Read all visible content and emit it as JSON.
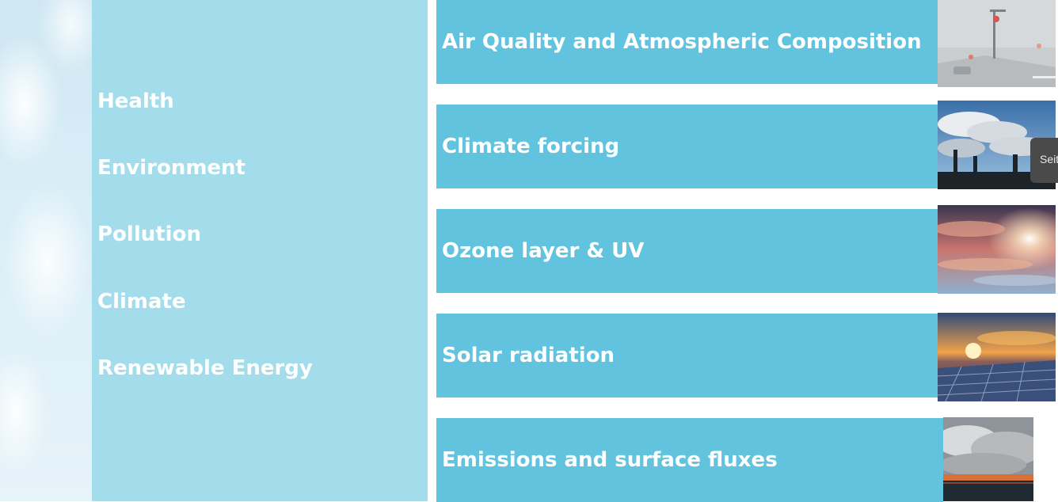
{
  "sidebar": {
    "topics": [
      "Health",
      "Environment",
      "Pollution",
      "Climate",
      "Renewable Energy"
    ]
  },
  "tiles": [
    {
      "label": "Air Quality and Atmospheric Composition",
      "image": "foggy-street-traffic-light"
    },
    {
      "label": "Climate forcing",
      "image": "factory-chimney-smoke"
    },
    {
      "label": "Ozone layer & UV",
      "image": "sun-through-clouds"
    },
    {
      "label": "Solar radiation",
      "image": "solar-panels-sunset"
    },
    {
      "label": "Emissions and surface fluxes",
      "image": "wildfire-smoke-over-lake"
    }
  ],
  "side_tab": {
    "label": "Seit"
  },
  "colors": {
    "topics_panel": "#a3dceb",
    "tile": "#62c3de",
    "text": "#ffffff",
    "side_tab": "#4a4a4a"
  }
}
